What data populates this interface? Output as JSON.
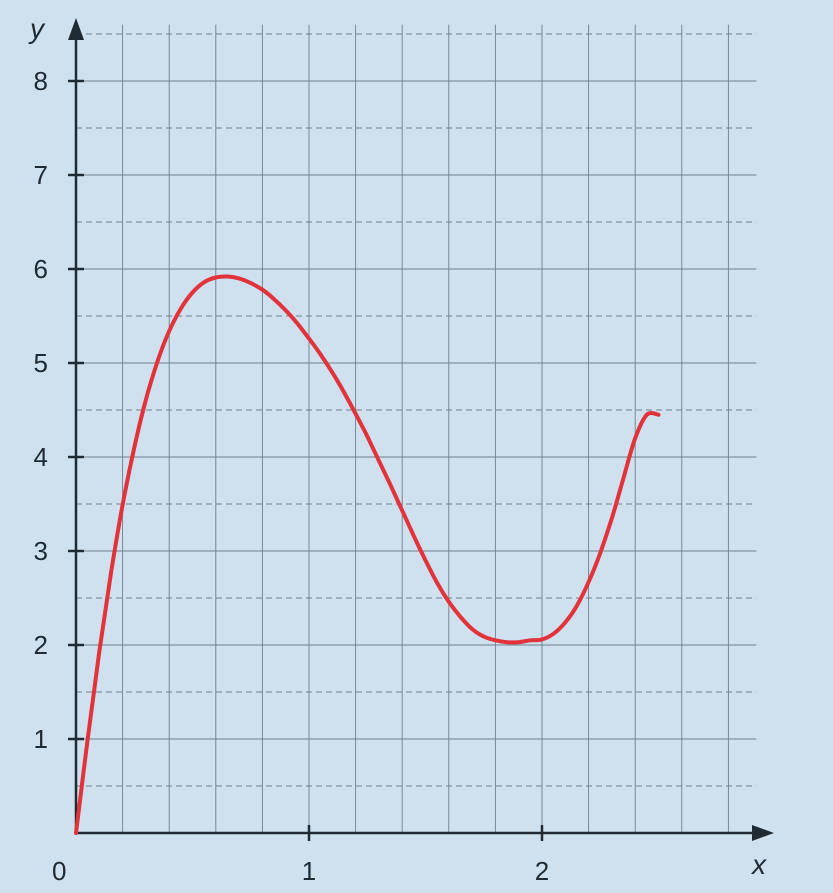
{
  "chart_data": {
    "type": "line",
    "title": "",
    "xlabel": "x",
    "ylabel": "y",
    "origin_label": "0",
    "xlim": [
      0,
      2.92
    ],
    "ylim": [
      0,
      8.6
    ],
    "x_ticks": [
      1,
      2
    ],
    "x_tick_labels": [
      "1",
      "2"
    ],
    "y_ticks": [
      1,
      2,
      3,
      4,
      5,
      6,
      7,
      8
    ],
    "y_tick_labels": [
      "1",
      "2",
      "3",
      "4",
      "5",
      "6",
      "7",
      "8"
    ],
    "grid": true,
    "grid_step_x": 0.2,
    "grid_step_y": 0.5,
    "series": [
      {
        "color": "#e2323a",
        "x": [
          0,
          0.05,
          0.1,
          0.15,
          0.2,
          0.25,
          0.3,
          0.35,
          0.4,
          0.45,
          0.5,
          0.55,
          0.6,
          0.65,
          0.7,
          0.75,
          0.8,
          0.85,
          0.9,
          0.95,
          1.0,
          1.05,
          1.1,
          1.15,
          1.2,
          1.25,
          1.3,
          1.35,
          1.4,
          1.45,
          1.5,
          1.55,
          1.6,
          1.65,
          1.7,
          1.75,
          1.8,
          1.85,
          1.9,
          1.95,
          2.0,
          2.05,
          2.1,
          2.15,
          2.2,
          2.25,
          2.3,
          2.35,
          2.4,
          2.45,
          2.5
        ],
        "y": [
          0.0,
          1.0,
          1.93,
          2.76,
          3.49,
          4.1,
          4.61,
          5.02,
          5.34,
          5.58,
          5.75,
          5.86,
          5.91,
          5.92,
          5.9,
          5.85,
          5.78,
          5.68,
          5.56,
          5.42,
          5.26,
          5.09,
          4.9,
          4.69,
          4.46,
          4.22,
          3.96,
          3.7,
          3.43,
          3.16,
          2.9,
          2.66,
          2.46,
          2.3,
          2.17,
          2.09,
          2.05,
          2.03,
          2.03,
          2.05,
          2.06,
          2.12,
          2.24,
          2.42,
          2.67,
          2.98,
          3.35,
          3.78,
          4.2,
          4.45,
          4.45
        ]
      }
    ]
  }
}
